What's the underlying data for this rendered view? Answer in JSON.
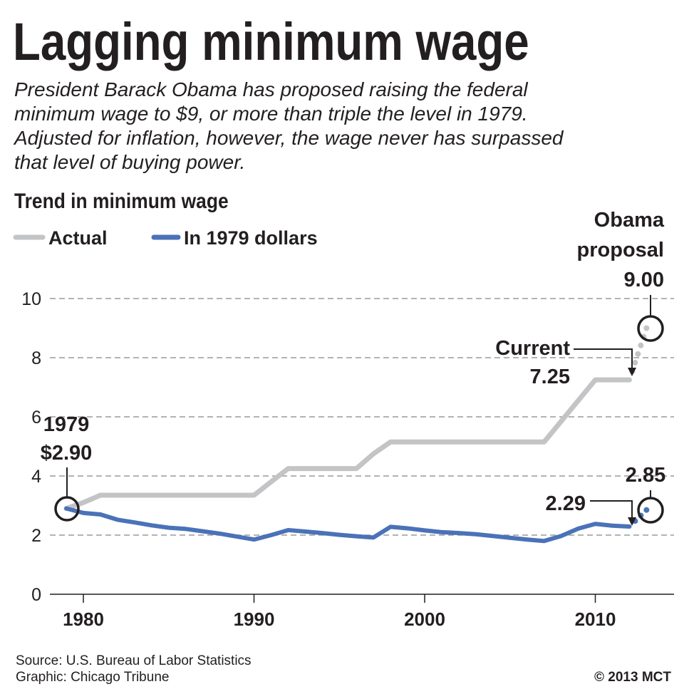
{
  "title": "Lagging minimum wage",
  "subtitle_lines": [
    "President Barack Obama has proposed raising the federal",
    "minimum wage to $9, or more than triple the level in 1979.",
    "Adjusted for inflation, however, the wage never has surpassed",
    "that level of buying power."
  ],
  "source": "Source: U.S. Bureau of Labor Statistics",
  "credit": "Graphic: Chicago Tribune",
  "copyright": "© 2013 MCT",
  "chart_data": {
    "type": "line",
    "title": "Trend in minimum wage",
    "xlabel": "",
    "ylabel": "",
    "xlim": [
      1978.5,
      2014.5
    ],
    "ylim": [
      0,
      10
    ],
    "x_ticks": [
      "1980",
      "1990",
      "2000",
      "2010"
    ],
    "y_ticks": [
      "0",
      "2",
      "4",
      "6",
      "8",
      "10"
    ],
    "grid": "horizontal dashed",
    "legend": "top-left",
    "series": [
      {
        "name": "Actual",
        "color": "#c3c4c6",
        "x": [
          1979,
          1980,
          1981,
          1990,
          1991,
          1992,
          1996,
          1997,
          1998,
          2007,
          2008,
          2009,
          2010,
          2012
        ],
        "values": [
          2.9,
          3.1,
          3.35,
          3.35,
          3.8,
          4.25,
          4.25,
          4.75,
          5.15,
          5.15,
          5.85,
          6.55,
          7.25,
          7.25
        ],
        "projection": {
          "x": [
            2012,
            2013
          ],
          "values": [
            7.25,
            9.0
          ]
        }
      },
      {
        "name": "In 1979 dollars",
        "color": "#4a72b8",
        "x": [
          1979,
          1980,
          1981,
          1982,
          1983,
          1984,
          1985,
          1986,
          1987,
          1988,
          1989,
          1990,
          1991,
          1992,
          1993,
          1994,
          1995,
          1996,
          1997,
          1998,
          1999,
          2000,
          2001,
          2002,
          2003,
          2004,
          2005,
          2006,
          2007,
          2008,
          2009,
          2010,
          2011,
          2012
        ],
        "values": [
          2.9,
          2.75,
          2.7,
          2.52,
          2.43,
          2.33,
          2.25,
          2.21,
          2.13,
          2.05,
          1.95,
          1.85,
          2.0,
          2.17,
          2.12,
          2.07,
          2.01,
          1.96,
          1.92,
          2.28,
          2.23,
          2.16,
          2.1,
          2.07,
          2.03,
          1.97,
          1.91,
          1.85,
          1.8,
          1.97,
          2.22,
          2.38,
          2.32,
          2.29
        ],
        "projection": {
          "x": [
            2012,
            2013
          ],
          "values": [
            2.29,
            2.85
          ]
        }
      }
    ],
    "annotations": [
      {
        "label": "1979",
        "value": "$2.90"
      },
      {
        "label": "Current",
        "value": "7.25"
      },
      {
        "label": "Obama proposal",
        "label_lines": [
          "Obama",
          "proposal"
        ],
        "value": "9.00"
      },
      {
        "value": "2.29"
      },
      {
        "value": "2.85"
      }
    ]
  }
}
